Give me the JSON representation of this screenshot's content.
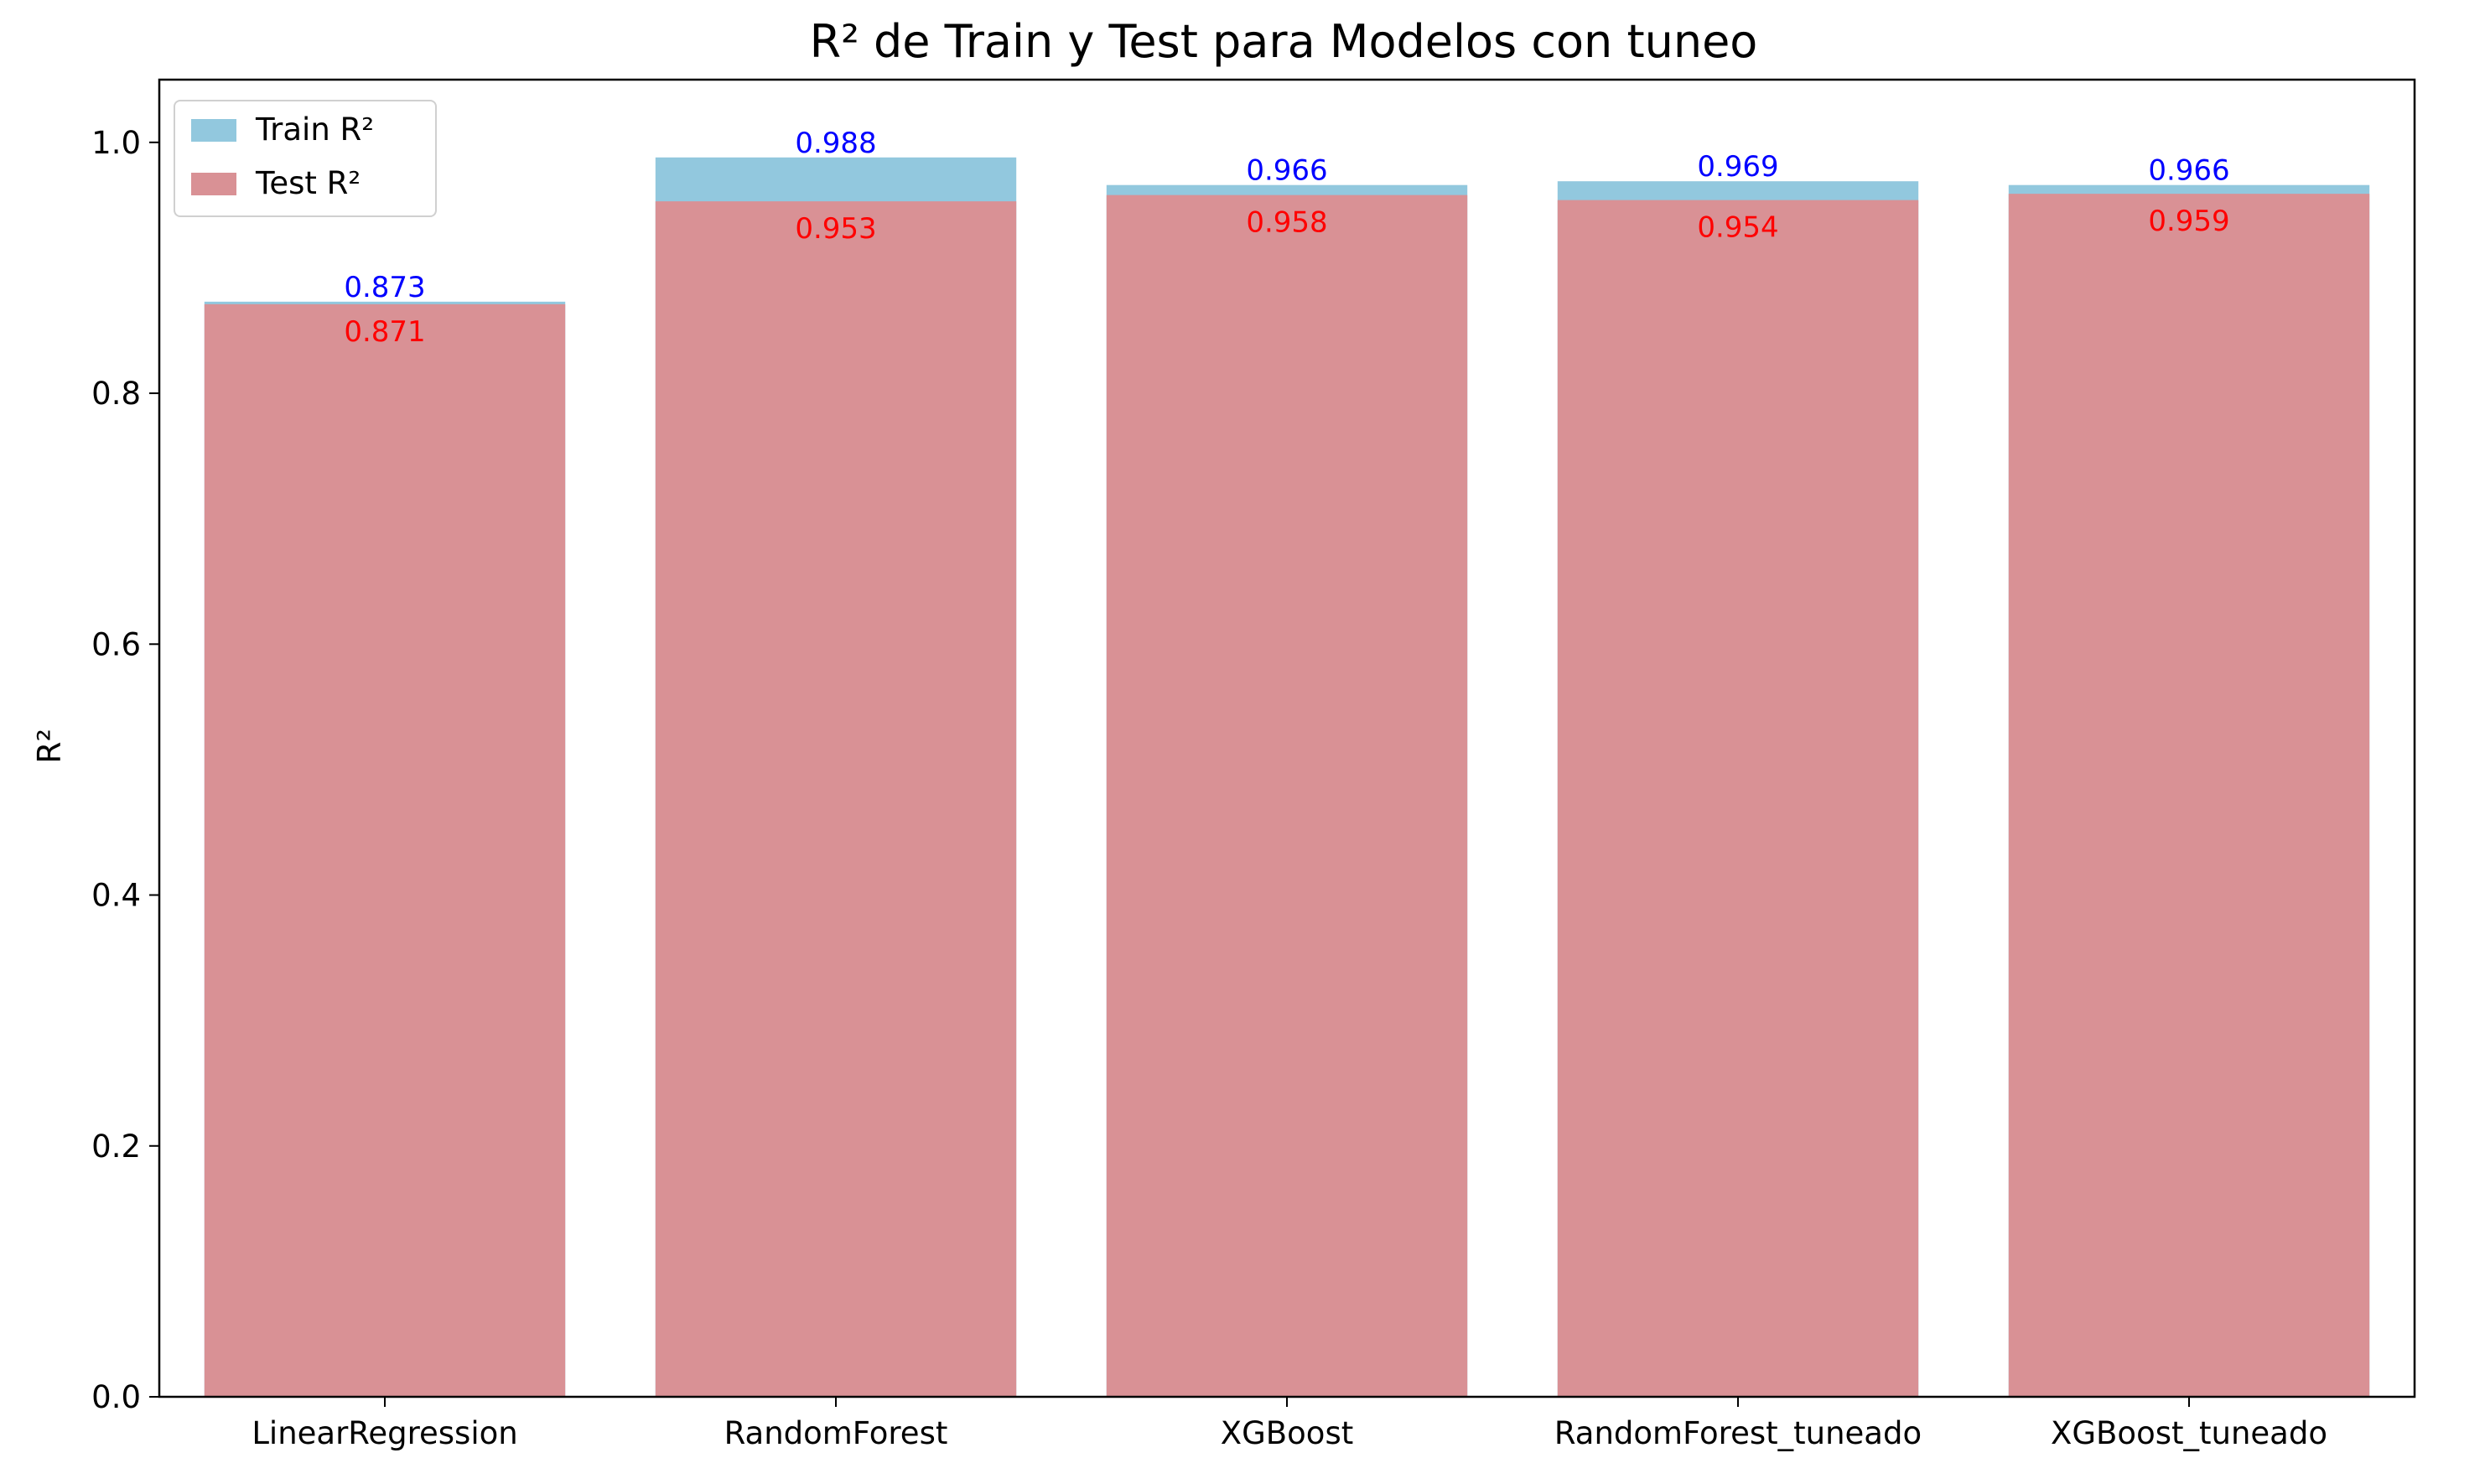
{
  "chart_data": {
    "type": "bar",
    "title": "R² de Train y Test para Modelos con tuneo",
    "xlabel": "",
    "ylabel": "R²",
    "ylim": [
      0.0,
      1.05
    ],
    "yticks": [
      "0.0",
      "0.2",
      "0.4",
      "0.6",
      "0.8",
      "1.0"
    ],
    "grid": false,
    "legend_position": "top-left",
    "categories": [
      "LinearRegression",
      "RandomForest",
      "XGBoost",
      "RandomForest_tuneado",
      "XGBoost_tuneado"
    ],
    "series": [
      {
        "name": "Train R²",
        "values": [
          0.873,
          0.988,
          0.966,
          0.969,
          0.966
        ],
        "labels": [
          "0.873",
          "0.988",
          "0.966",
          "0.969",
          "0.966"
        ],
        "color": "#92c8de",
        "label_color": "#0000ff"
      },
      {
        "name": "Test R²",
        "values": [
          0.871,
          0.953,
          0.958,
          0.954,
          0.959
        ],
        "labels": [
          "0.871",
          "0.953",
          "0.958",
          "0.954",
          "0.959"
        ],
        "color": "#d99195",
        "label_color": "#ff0000"
      }
    ]
  }
}
